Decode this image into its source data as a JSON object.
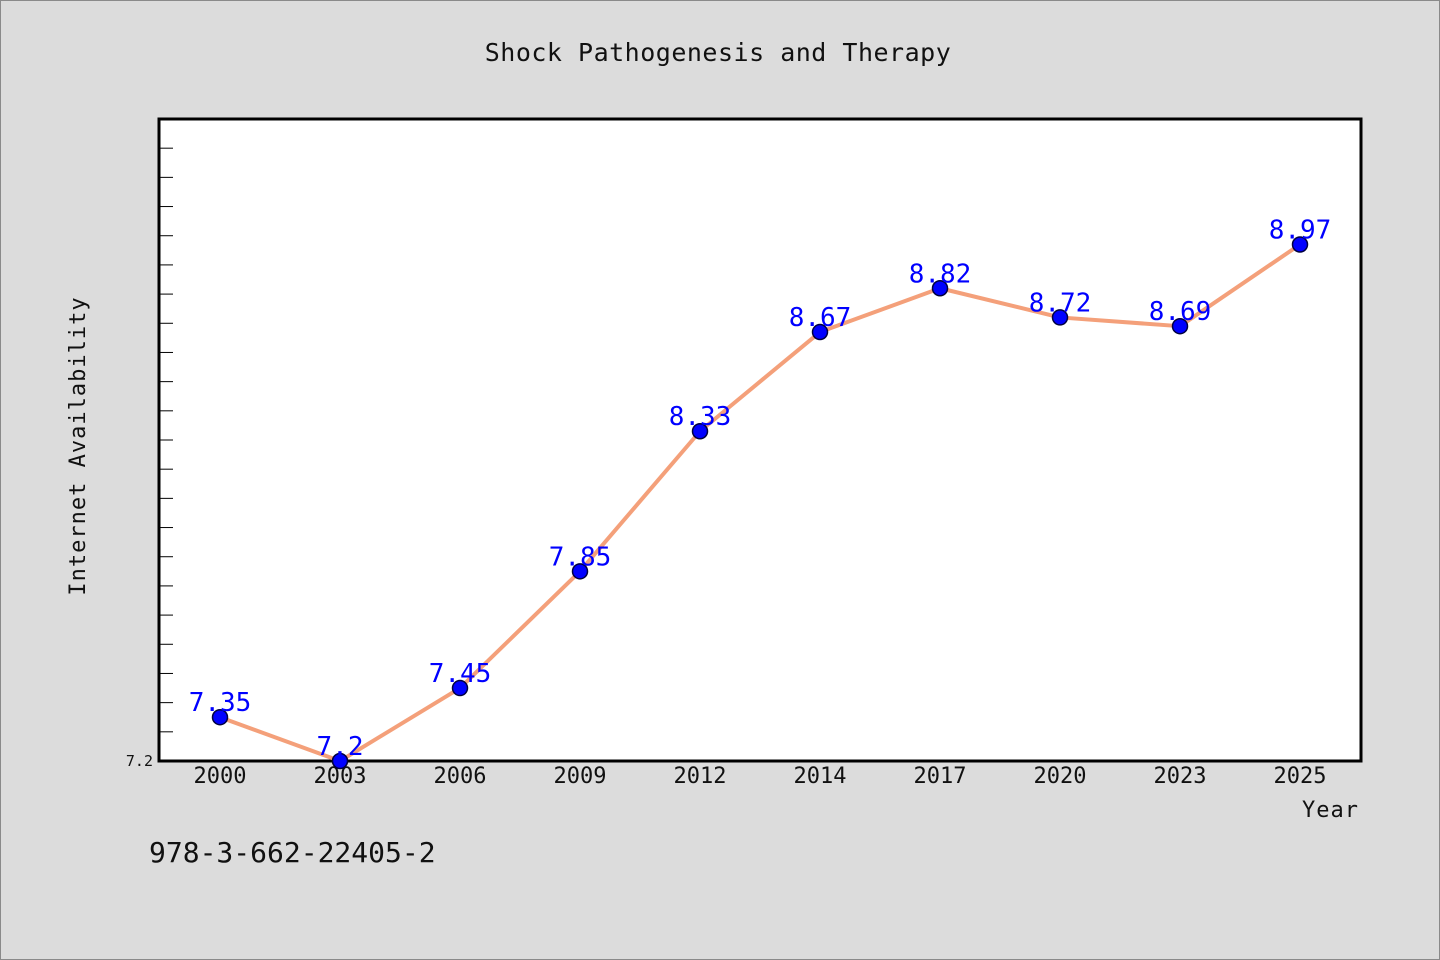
{
  "chart_data": {
    "type": "line",
    "title": "Shock Pathogenesis and Therapy",
    "xlabel": "Year",
    "ylabel": "Internet Availability",
    "categories": [
      "2000",
      "2003",
      "2006",
      "2009",
      "2012",
      "2014",
      "2017",
      "2020",
      "2023",
      "2025"
    ],
    "values": [
      7.35,
      7.2,
      7.45,
      7.85,
      8.33,
      8.67,
      8.82,
      8.72,
      8.69,
      8.97
    ],
    "data_labels": [
      "7.35",
      "7.2",
      "7.45",
      "7.85",
      "8.33",
      "8.67",
      "8.82",
      "8.72",
      "8.69",
      "8.97"
    ],
    "ylim": [
      7.2,
      9.4
    ],
    "yticks_labeled": [
      "7.2"
    ],
    "grid": false,
    "line_color": "#f4a07a",
    "marker_color": "#0000ff",
    "label_color": "#0000ff"
  },
  "footer": {
    "isbn": "978-3-662-22405-2"
  }
}
